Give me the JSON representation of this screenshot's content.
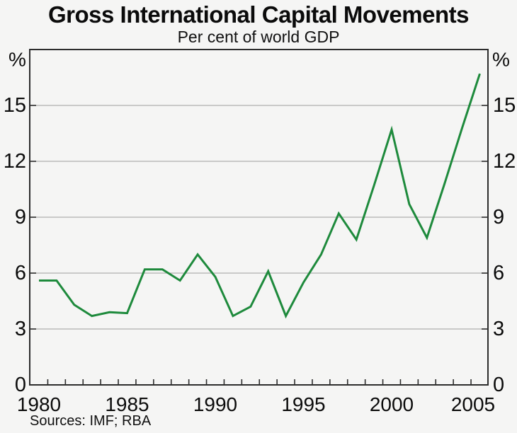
{
  "header": {
    "title": "Gross International Capital Movements",
    "subtitle": "Per cent of world GDP"
  },
  "footer": {
    "sources": "Sources: IMF; RBA"
  },
  "colors": {
    "background": "#f5f5f4",
    "line": "#1e8a3c",
    "grid": "#afafae",
    "frame": "#2d2d2d",
    "text": "#0b0b0b"
  },
  "chart_data": {
    "type": "line",
    "title": "Gross International Capital Movements",
    "subtitle": "Per cent of world GDP",
    "x": [
      1980,
      1981,
      1982,
      1983,
      1984,
      1985,
      1986,
      1987,
      1988,
      1989,
      1990,
      1991,
      1992,
      1993,
      1994,
      1995,
      1996,
      1997,
      1998,
      1999,
      2000,
      2001,
      2002,
      2003,
      2004,
      2005
    ],
    "series": [
      {
        "name": "Gross international capital movements (per cent of world GDP)",
        "values": [
          5.6,
          5.6,
          4.3,
          3.7,
          3.9,
          3.85,
          6.2,
          6.2,
          5.6,
          7.0,
          5.8,
          3.7,
          4.2,
          6.1,
          3.7,
          5.5,
          7.0,
          9.2,
          7.8,
          10.7,
          13.7,
          9.7,
          7.9,
          10.8,
          13.8,
          16.7
        ]
      }
    ],
    "unit_label_left": "%",
    "unit_label_right": "%",
    "ylim": [
      0,
      18
    ],
    "yticks": [
      0,
      3,
      6,
      9,
      12,
      15
    ],
    "xtick_labels": [
      1980,
      1985,
      1990,
      1995,
      2000,
      2005
    ],
    "minor_xticks_every_year": true,
    "grid": true,
    "legend_position": "none",
    "xlabel": "",
    "ylabel": "%",
    "sources": "Sources: IMF; RBA"
  }
}
